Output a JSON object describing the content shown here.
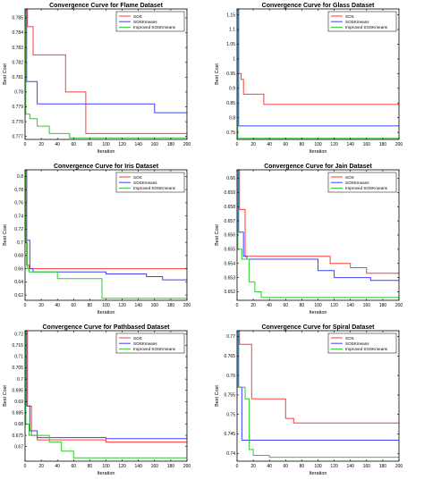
{
  "chart_data": [
    {
      "type": "line",
      "title": "Convergence Curve for Flame Dataset",
      "xlabel": "Iteration",
      "ylabel": "Best Cost",
      "xlim": [
        0,
        200
      ],
      "ylim": [
        0.7768,
        0.7856
      ],
      "xticks": [
        "0",
        "20",
        "40",
        "60",
        "80",
        "100",
        "120",
        "140",
        "160",
        "180",
        "200"
      ],
      "yticks": [
        "0.777",
        "0.778",
        "0.779",
        "0.78",
        "0.781",
        "0.782",
        "0.783",
        "0.784",
        "0.785"
      ],
      "ytick_values": [
        0.777,
        0.778,
        0.779,
        0.78,
        0.781,
        0.782,
        0.783,
        0.784,
        0.785
      ],
      "legend_position": "top-right",
      "series": [
        {
          "name": "SOS",
          "color": "#ff3b3b",
          "points": [
            [
              0,
              0.7856
            ],
            [
              3,
              0.7856
            ],
            [
              3,
              0.7844
            ],
            [
              10,
              0.7844
            ],
            [
              10,
              0.7825
            ],
            [
              50,
              0.7825
            ],
            [
              50,
              0.78
            ],
            [
              75,
              0.78
            ],
            [
              75,
              0.7772
            ],
            [
              200,
              0.7772
            ]
          ]
        },
        {
          "name": "SOSKmeans",
          "color": "#4040ff",
          "points": [
            [
              0,
              0.7856
            ],
            [
              2,
              0.7856
            ],
            [
              2,
              0.7807
            ],
            [
              15,
              0.7807
            ],
            [
              15,
              0.7792
            ],
            [
              160,
              0.7792
            ],
            [
              160,
              0.7786
            ],
            [
              200,
              0.7786
            ]
          ]
        },
        {
          "name": "Improved SOSKmeans",
          "color": "#2ecc2e",
          "points": [
            [
              0,
              0.7856
            ],
            [
              1,
              0.7856
            ],
            [
              1,
              0.7785
            ],
            [
              6,
              0.7785
            ],
            [
              6,
              0.7782
            ],
            [
              15,
              0.7782
            ],
            [
              15,
              0.7777
            ],
            [
              30,
              0.7777
            ],
            [
              30,
              0.7772
            ],
            [
              55,
              0.7772
            ],
            [
              55,
              0.7769
            ],
            [
              200,
              0.7769
            ]
          ]
        }
      ]
    },
    {
      "type": "line",
      "title": "Convergence Curve for Glass Dataset",
      "xlabel": "Iteration",
      "ylabel": "Best Cost",
      "xlim": [
        0,
        200
      ],
      "ylim": [
        0.726,
        1.17
      ],
      "xticks": [
        "0",
        "20",
        "40",
        "60",
        "80",
        "100",
        "120",
        "140",
        "160",
        "180",
        "200"
      ],
      "yticks": [
        "0.75",
        "0.8",
        "0.85",
        "0.9",
        "0.95",
        "1",
        "1.05",
        "1.1",
        "1.15"
      ],
      "ytick_values": [
        0.75,
        0.8,
        0.85,
        0.9,
        0.95,
        1,
        1.05,
        1.1,
        1.15
      ],
      "legend_position": "top-right",
      "series": [
        {
          "name": "SOS",
          "color": "#ff3b3b",
          "points": [
            [
              0,
              1.17
            ],
            [
              2,
              1.17
            ],
            [
              2,
              0.95
            ],
            [
              5,
              0.95
            ],
            [
              5,
              0.93
            ],
            [
              8,
              0.93
            ],
            [
              8,
              0.88
            ],
            [
              33,
              0.88
            ],
            [
              33,
              0.845
            ],
            [
              200,
              0.845
            ]
          ]
        },
        {
          "name": "SOSKmeans",
          "color": "#4040ff",
          "points": [
            [
              0,
              1.17
            ],
            [
              2,
              1.17
            ],
            [
              2,
              0.772
            ],
            [
              200,
              0.772
            ]
          ]
        },
        {
          "name": "Improved SOSKmeans",
          "color": "#2ecc2e",
          "points": [
            [
              0,
              1.17
            ],
            [
              1,
              1.17
            ],
            [
              1,
              0.73
            ],
            [
              200,
              0.73
            ]
          ]
        }
      ]
    },
    {
      "type": "line",
      "title": "Convergence Curve for Iris Dataset",
      "xlabel": "Iteration",
      "ylabel": "Best Cost",
      "xlim": [
        0,
        200
      ],
      "ylim": [
        0.612,
        0.81
      ],
      "xticks": [
        "0",
        "20",
        "40",
        "60",
        "80",
        "100",
        "120",
        "140",
        "160",
        "180",
        "200"
      ],
      "yticks": [
        "0.62",
        "0.64",
        "0.66",
        "0.68",
        "0.7",
        "0.72",
        "0.74",
        "0.76",
        "0.78",
        "0.8"
      ],
      "ytick_values": [
        0.62,
        0.64,
        0.66,
        0.68,
        0.7,
        0.72,
        0.74,
        0.76,
        0.78,
        0.8
      ],
      "legend_position": "top-right",
      "series": [
        {
          "name": "SOS",
          "color": "#ff3b3b",
          "points": [
            [
              0,
              0.81
            ],
            [
              2,
              0.81
            ],
            [
              2,
              0.665
            ],
            [
              5,
              0.665
            ],
            [
              5,
              0.66
            ],
            [
              200,
              0.66
            ]
          ]
        },
        {
          "name": "SOSKmeans",
          "color": "#4040ff",
          "points": [
            [
              0,
              0.81
            ],
            [
              2,
              0.81
            ],
            [
              2,
              0.703
            ],
            [
              6,
              0.703
            ],
            [
              6,
              0.66
            ],
            [
              10,
              0.66
            ],
            [
              10,
              0.655
            ],
            [
              100,
              0.655
            ],
            [
              100,
              0.652
            ],
            [
              150,
              0.652
            ],
            [
              150,
              0.648
            ],
            [
              170,
              0.648
            ],
            [
              170,
              0.643
            ],
            [
              200,
              0.643
            ]
          ]
        },
        {
          "name": "Improved SOSKmeans",
          "color": "#2ecc2e",
          "points": [
            [
              0,
              0.81
            ],
            [
              1,
              0.81
            ],
            [
              1,
              0.7
            ],
            [
              3,
              0.7
            ],
            [
              3,
              0.66
            ],
            [
              5,
              0.66
            ],
            [
              5,
              0.655
            ],
            [
              40,
              0.655
            ],
            [
              40,
              0.645
            ],
            [
              95,
              0.645
            ],
            [
              95,
              0.615
            ],
            [
              200,
              0.615
            ]
          ]
        }
      ]
    },
    {
      "type": "line",
      "title": "Convergence Curve for Jain Dataset",
      "xlabel": "Iteration",
      "ylabel": "Best Cost",
      "xlim": [
        0,
        200
      ],
      "ylim": [
        0.6514,
        0.6606
      ],
      "xticks": [
        "0",
        "20",
        "40",
        "60",
        "80",
        "100",
        "120",
        "140",
        "160",
        "180",
        "200"
      ],
      "yticks": [
        "0.652",
        "0.653",
        "0.654",
        "0.655",
        "0.656",
        "0.657",
        "0.658",
        "0.659",
        "0.66"
      ],
      "ytick_values": [
        0.652,
        0.653,
        0.654,
        0.655,
        0.656,
        0.657,
        0.658,
        0.659,
        0.66
      ],
      "legend_position": "top-right",
      "series": [
        {
          "name": "SOS",
          "color": "#ff3b3b",
          "points": [
            [
              0,
              0.6606
            ],
            [
              3,
              0.6606
            ],
            [
              3,
              0.6578
            ],
            [
              10,
              0.6578
            ],
            [
              10,
              0.6545
            ],
            [
              115,
              0.6545
            ],
            [
              115,
              0.654
            ],
            [
              140,
              0.654
            ],
            [
              140,
              0.6537
            ],
            [
              160,
              0.6537
            ],
            [
              160,
              0.6533
            ],
            [
              200,
              0.6533
            ]
          ]
        },
        {
          "name": "SOSKmeans",
          "color": "#4040ff",
          "points": [
            [
              0,
              0.6606
            ],
            [
              2,
              0.6606
            ],
            [
              2,
              0.6562
            ],
            [
              8,
              0.6562
            ],
            [
              8,
              0.6545
            ],
            [
              12,
              0.6545
            ],
            [
              12,
              0.6543
            ],
            [
              100,
              0.6543
            ],
            [
              100,
              0.6535
            ],
            [
              120,
              0.6535
            ],
            [
              120,
              0.653
            ],
            [
              165,
              0.653
            ],
            [
              165,
              0.6528
            ],
            [
              200,
              0.6528
            ]
          ]
        },
        {
          "name": "Improved SOSKmeans",
          "color": "#2ecc2e",
          "points": [
            [
              0,
              0.6606
            ],
            [
              1,
              0.6606
            ],
            [
              1,
              0.655
            ],
            [
              6,
              0.655
            ],
            [
              6,
              0.6543
            ],
            [
              15,
              0.6543
            ],
            [
              15,
              0.6527
            ],
            [
              22,
              0.6527
            ],
            [
              22,
              0.652
            ],
            [
              30,
              0.652
            ],
            [
              30,
              0.6516
            ],
            [
              200,
              0.6516
            ]
          ]
        }
      ]
    },
    {
      "type": "line",
      "title": "Convergence Curve for Pathbased Dataset",
      "xlabel": "Iteration",
      "ylabel": "Best Cost",
      "xlim": [
        0,
        200
      ],
      "ylim": [
        0.6635,
        0.7215
      ],
      "xticks": [
        "0",
        "20",
        "40",
        "60",
        "80",
        "100",
        "120",
        "140",
        "160",
        "180",
        "200"
      ],
      "yticks": [
        "0.67",
        "0.675",
        "0.68",
        "0.685",
        "0.69",
        "0.695",
        "0.7",
        "0.705",
        "0.71",
        "0.715",
        "0.72"
      ],
      "ytick_values": [
        0.67,
        0.675,
        0.68,
        0.685,
        0.69,
        0.695,
        0.7,
        0.705,
        0.71,
        0.715,
        0.72
      ],
      "legend_position": "top-right",
      "series": [
        {
          "name": "SOS",
          "color": "#ff3b3b",
          "points": [
            [
              0,
              0.7215
            ],
            [
              3,
              0.7215
            ],
            [
              3,
              0.688
            ],
            [
              8,
              0.688
            ],
            [
              8,
              0.675
            ],
            [
              15,
              0.675
            ],
            [
              15,
              0.673
            ],
            [
              100,
              0.673
            ],
            [
              100,
              0.672
            ],
            [
              200,
              0.672
            ]
          ]
        },
        {
          "name": "SOSKmeans",
          "color": "#4040ff",
          "points": [
            [
              0,
              0.7215
            ],
            [
              2,
              0.7215
            ],
            [
              2,
              0.688
            ],
            [
              6,
              0.688
            ],
            [
              6,
              0.677
            ],
            [
              15,
              0.677
            ],
            [
              15,
              0.674
            ],
            [
              100,
              0.674
            ],
            [
              100,
              0.6735
            ],
            [
              200,
              0.6735
            ]
          ]
        },
        {
          "name": "Improved SOSKmeans",
          "color": "#2ecc2e",
          "points": [
            [
              0,
              0.7215
            ],
            [
              1,
              0.7215
            ],
            [
              1,
              0.68
            ],
            [
              5,
              0.68
            ],
            [
              5,
              0.675
            ],
            [
              30,
              0.675
            ],
            [
              30,
              0.672
            ],
            [
              45,
              0.672
            ],
            [
              45,
              0.668
            ],
            [
              60,
              0.668
            ],
            [
              60,
              0.665
            ],
            [
              200,
              0.665
            ]
          ]
        }
      ]
    },
    {
      "type": "line",
      "title": "Convergence Curve for Spiral Dataset",
      "xlabel": "Iteration",
      "ylabel": "Best Cost",
      "xlim": [
        0,
        200
      ],
      "ylim": [
        0.738,
        0.7715
      ],
      "xticks": [
        "0",
        "20",
        "40",
        "60",
        "80",
        "100",
        "120",
        "140",
        "160",
        "180",
        "200"
      ],
      "yticks": [
        "0.74",
        "0.745",
        "0.75",
        "0.755",
        "0.76",
        "0.765",
        "0.77"
      ],
      "ytick_values": [
        0.74,
        0.745,
        0.75,
        0.755,
        0.76,
        0.765,
        0.77
      ],
      "legend_position": "top-right",
      "series": [
        {
          "name": "SOS",
          "color": "#ff3b3b",
          "points": [
            [
              0,
              0.7715
            ],
            [
              3,
              0.7715
            ],
            [
              3,
              0.768
            ],
            [
              18,
              0.768
            ],
            [
              18,
              0.754
            ],
            [
              60,
              0.754
            ],
            [
              60,
              0.749
            ],
            [
              70,
              0.749
            ],
            [
              70,
              0.7478
            ],
            [
              200,
              0.7478
            ]
          ]
        },
        {
          "name": "SOSKmeans",
          "color": "#4040ff",
          "points": [
            [
              0,
              0.7715
            ],
            [
              2,
              0.7715
            ],
            [
              2,
              0.757
            ],
            [
              6,
              0.757
            ],
            [
              6,
              0.7434
            ],
            [
              200,
              0.7434
            ]
          ]
        },
        {
          "name": "Improved SOSKmeans",
          "color": "#2ecc2e",
          "points": [
            [
              0,
              0.7715
            ],
            [
              1,
              0.7715
            ],
            [
              1,
              0.757
            ],
            [
              10,
              0.757
            ],
            [
              10,
              0.754
            ],
            [
              15,
              0.754
            ],
            [
              15,
              0.741
            ],
            [
              20,
              0.741
            ],
            [
              20,
              0.7395
            ],
            [
              40,
              0.7395
            ],
            [
              40,
              0.739
            ],
            [
              200,
              0.739
            ]
          ]
        }
      ]
    }
  ]
}
